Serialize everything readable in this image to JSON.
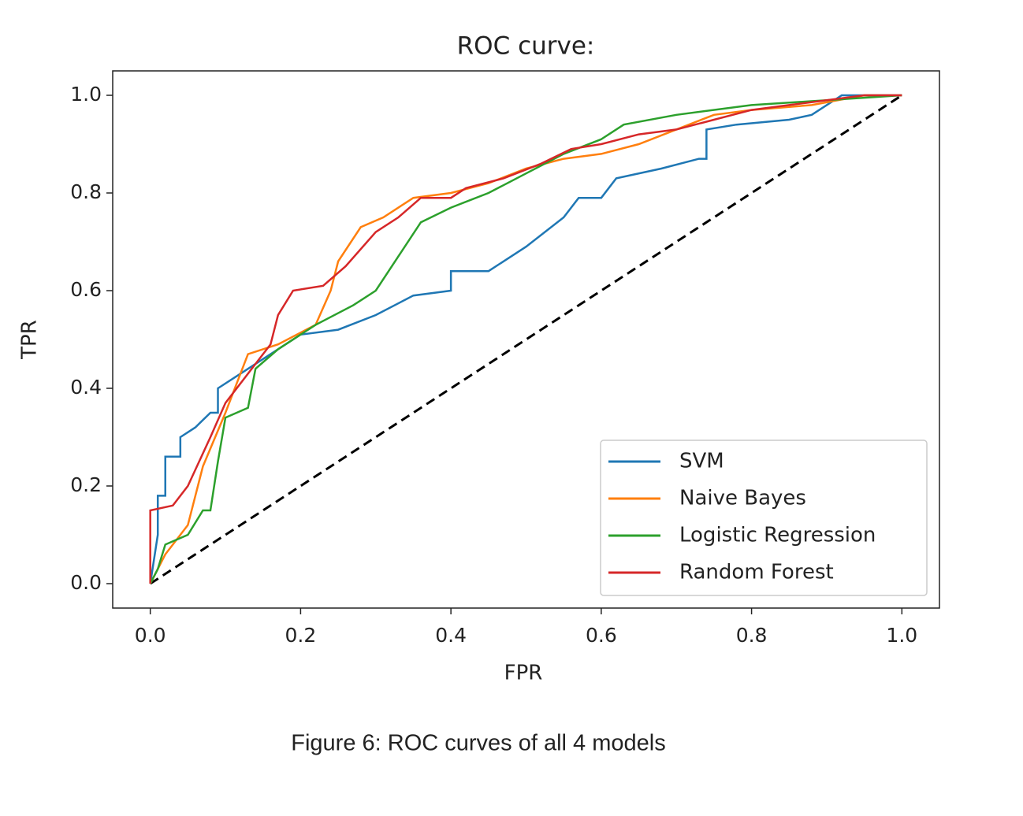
{
  "chart_data": {
    "type": "line",
    "title": "ROC curve:",
    "xlabel": "FPR",
    "ylabel": "TPR",
    "caption": "Figure 6: ROC curves of all 4 models",
    "xlim": [
      -0.05,
      1.05
    ],
    "ylim": [
      -0.05,
      1.05
    ],
    "xticks": [
      {
        "value": 0,
        "label": "0.0"
      },
      0.2,
      0.4,
      0.6,
      0.8,
      {
        "value": 1,
        "label": "1.0"
      }
    ],
    "yticks": [
      {
        "value": 0,
        "label": "0.0"
      },
      0.2,
      0.4,
      0.6,
      0.8,
      {
        "value": 1,
        "label": "1.0"
      }
    ],
    "legend": "lower right",
    "grid": false,
    "reference": {
      "x": [
        0,
        1
      ],
      "values": [
        0,
        1
      ],
      "color": "#000000",
      "dash": true
    },
    "series": [
      {
        "name": "SVM",
        "color": "#1f77b4",
        "x": [
          0,
          0.01,
          0.01,
          0.02,
          0.02,
          0.04,
          0.04,
          0.06,
          0.08,
          0.09,
          0.09,
          0.12,
          0.15,
          0.2,
          0.25,
          0.3,
          0.35,
          0.4,
          0.4,
          0.45,
          0.5,
          0.55,
          0.57,
          0.6,
          0.62,
          0.68,
          0.73,
          0.74,
          0.74,
          0.78,
          0.85,
          0.88,
          0.9,
          0.92,
          1
        ],
        "values": [
          0,
          0.1,
          0.18,
          0.18,
          0.26,
          0.26,
          0.3,
          0.32,
          0.35,
          0.35,
          0.4,
          0.43,
          0.46,
          0.51,
          0.52,
          0.55,
          0.59,
          0.6,
          0.64,
          0.64,
          0.69,
          0.75,
          0.79,
          0.79,
          0.83,
          0.85,
          0.87,
          0.87,
          0.93,
          0.94,
          0.95,
          0.96,
          0.98,
          1,
          1
        ]
      },
      {
        "name": "Naive Bayes",
        "color": "#ff7f0e",
        "x": [
          0,
          0.02,
          0.05,
          0.07,
          0.1,
          0.13,
          0.17,
          0.22,
          0.24,
          0.25,
          0.28,
          0.31,
          0.35,
          0.4,
          0.45,
          0.5,
          0.55,
          0.6,
          0.65,
          0.7,
          0.75,
          0.8,
          0.88,
          0.95,
          1
        ],
        "values": [
          0,
          0.06,
          0.12,
          0.24,
          0.35,
          0.47,
          0.49,
          0.53,
          0.6,
          0.66,
          0.73,
          0.75,
          0.79,
          0.8,
          0.82,
          0.85,
          0.87,
          0.88,
          0.9,
          0.93,
          0.96,
          0.97,
          0.98,
          1,
          1
        ]
      },
      {
        "name": "Logistic Regression",
        "color": "#2ca02c",
        "x": [
          0,
          0.01,
          0.02,
          0.05,
          0.07,
          0.08,
          0.09,
          0.1,
          0.13,
          0.14,
          0.17,
          0.22,
          0.27,
          0.3,
          0.33,
          0.36,
          0.4,
          0.45,
          0.5,
          0.55,
          0.6,
          0.63,
          0.7,
          0.8,
          0.9,
          1
        ],
        "values": [
          0,
          0.03,
          0.08,
          0.1,
          0.15,
          0.15,
          0.25,
          0.34,
          0.36,
          0.44,
          0.48,
          0.53,
          0.57,
          0.6,
          0.67,
          0.74,
          0.77,
          0.8,
          0.84,
          0.88,
          0.91,
          0.94,
          0.96,
          0.98,
          0.99,
          1
        ]
      },
      {
        "name": "Random Forest",
        "color": "#d62728",
        "x": [
          0,
          0,
          0.03,
          0.05,
          0.08,
          0.1,
          0.14,
          0.16,
          0.17,
          0.19,
          0.23,
          0.26,
          0.3,
          0.33,
          0.36,
          0.4,
          0.42,
          0.47,
          0.52,
          0.56,
          0.6,
          0.65,
          0.7,
          0.75,
          0.8,
          0.85,
          0.9,
          0.95,
          1
        ],
        "values": [
          0,
          0.15,
          0.16,
          0.2,
          0.3,
          0.37,
          0.45,
          0.49,
          0.55,
          0.6,
          0.61,
          0.65,
          0.72,
          0.75,
          0.79,
          0.79,
          0.81,
          0.83,
          0.86,
          0.89,
          0.9,
          0.92,
          0.93,
          0.95,
          0.97,
          0.98,
          0.99,
          1,
          1
        ]
      }
    ]
  }
}
